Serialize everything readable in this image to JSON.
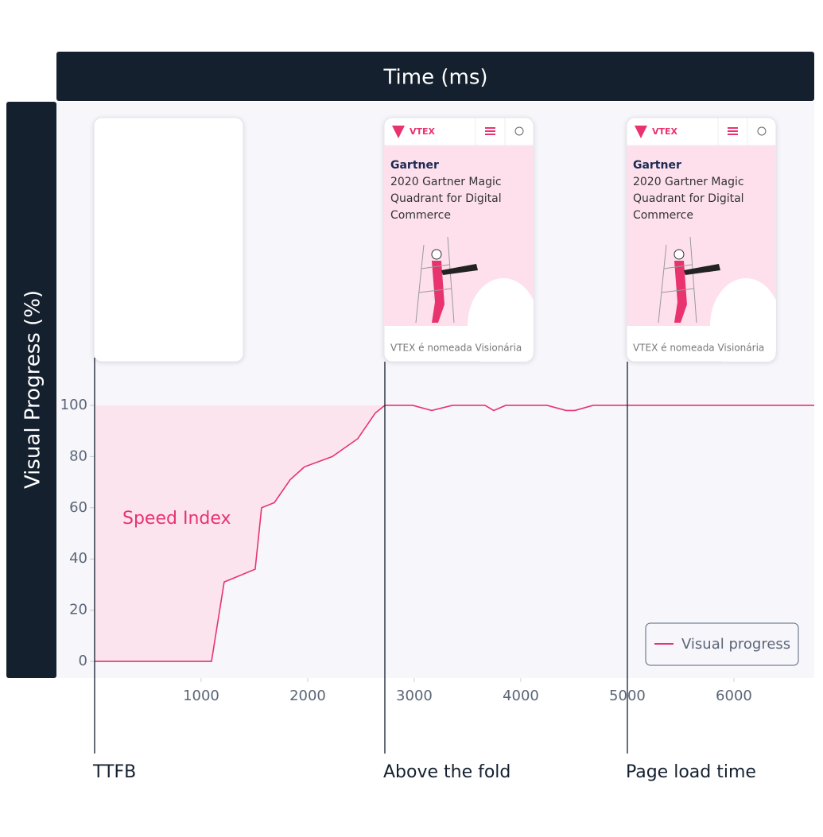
{
  "chart_data": {
    "type": "line",
    "xlabel": "Time (ms)",
    "ylabel": "Visual Progress (%)",
    "area_label": "Speed Index",
    "x": [
      0,
      1097,
      1216,
      1507,
      1567,
      1687,
      1836,
      1970,
      2231,
      2470,
      2634,
      2724,
      2985,
      3164,
      3358,
      3664,
      3746,
      3858,
      4246,
      4425,
      4507,
      4679,
      6754
    ],
    "series": [
      {
        "name": "Visual progress",
        "color": "#e8336f",
        "values": [
          0,
          0,
          31,
          36,
          60,
          62,
          71,
          76,
          80,
          87,
          97,
          100,
          100,
          98,
          100,
          100,
          98,
          100,
          100,
          98,
          98,
          100,
          100
        ]
      }
    ],
    "xlim": [
      -358,
      6754
    ],
    "ylim": [
      -6.5,
      218.6
    ],
    "xticks": [
      1000,
      2000,
      3000,
      4000,
      5000,
      6000
    ],
    "yticks": [
      0,
      20,
      40,
      60,
      80,
      100
    ],
    "grid": false,
    "legend": "lower right",
    "markers": [
      {
        "label": "TTFB",
        "x": 0
      },
      {
        "label": "Above the fold",
        "x": 2724,
        "frame": {
          "brand": "VTEX",
          "logo": "Gartner",
          "headline": [
            "2020 Gartner Magic",
            "Quadrant for Digital",
            "Commerce"
          ],
          "caption": "VTEX é nomeada Visionária"
        }
      },
      {
        "label": "Page load time",
        "x": 5000,
        "frame": {
          "brand": "VTEX",
          "logo": "Gartner",
          "headline": [
            "2020 Gartner Magic",
            "Quadrant for Digital",
            "Commerce"
          ],
          "caption": "VTEX é nomeada Visionária"
        }
      }
    ]
  }
}
